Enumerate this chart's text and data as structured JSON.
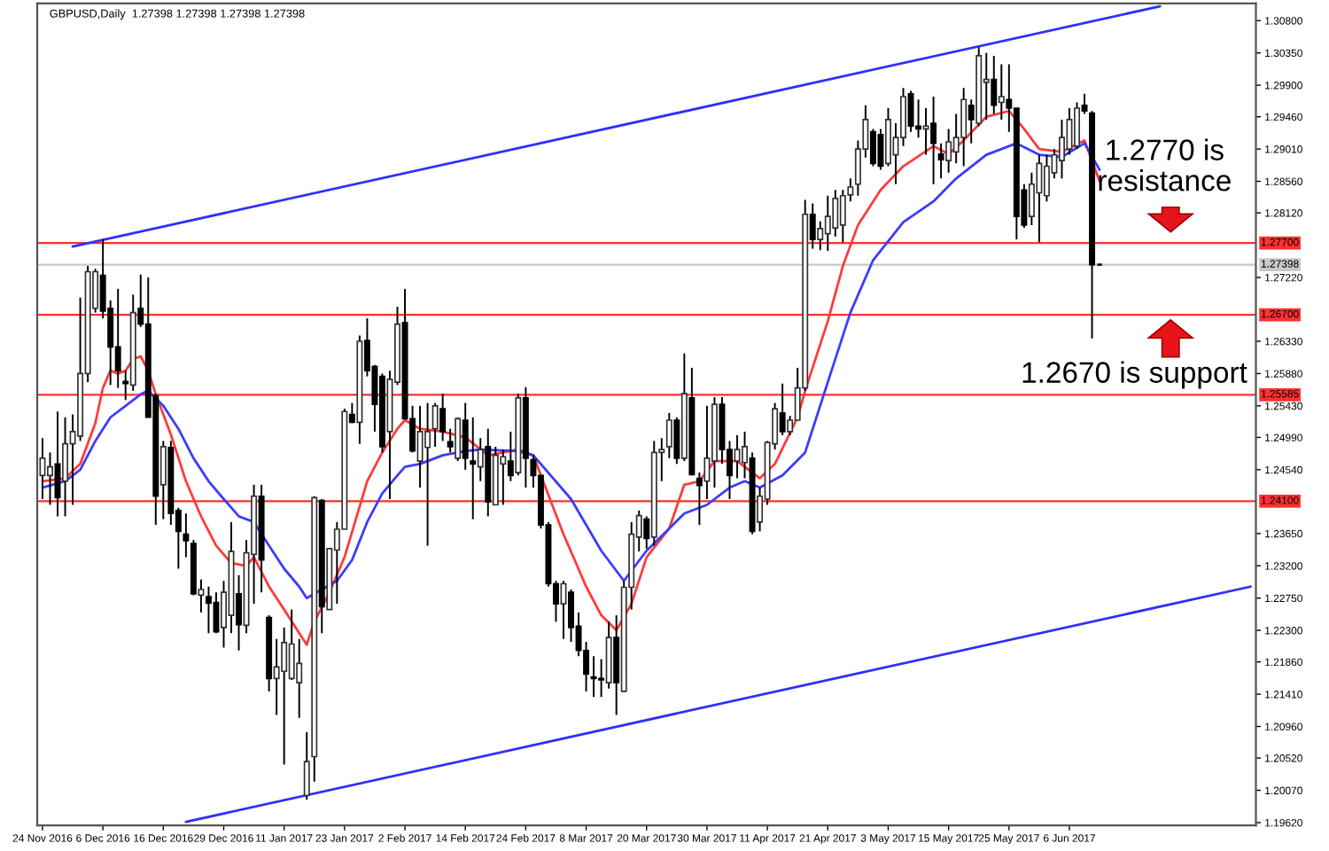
{
  "chart_data": {
    "type": "candlestick",
    "title": "GBPUSD,Daily  1.27398 1.27398 1.27398 1.27398",
    "categories": [
      "24 Nov 2016",
      null,
      null,
      null,
      null,
      null,
      null,
      null,
      "6 Dec 2016",
      null,
      null,
      null,
      null,
      null,
      null,
      null,
      "16 Dec 2016",
      null,
      null,
      null,
      null,
      null,
      null,
      null,
      "29 Dec 2016",
      null,
      null,
      null,
      null,
      null,
      null,
      null,
      "11 Jan 2017",
      null,
      null,
      null,
      null,
      null,
      null,
      null,
      "23 Jan 2017",
      null,
      null,
      null,
      null,
      null,
      null,
      null,
      "2 Feb 2017",
      null,
      null,
      null,
      null,
      null,
      null,
      null,
      "14 Feb 2017",
      null,
      null,
      null,
      null,
      null,
      null,
      null,
      "24 Feb 2017",
      null,
      null,
      null,
      null,
      null,
      null,
      null,
      "8 Mar 2017",
      null,
      null,
      null,
      null,
      null,
      null,
      null,
      "20 Mar 2017",
      null,
      null,
      null,
      null,
      null,
      null,
      null,
      "30 Mar 2017",
      null,
      null,
      null,
      null,
      null,
      null,
      null,
      "11 Apr 2017",
      null,
      null,
      null,
      null,
      null,
      null,
      null,
      "21 Apr 2017",
      null,
      null,
      null,
      null,
      null,
      null,
      null,
      "3 May 2017",
      null,
      null,
      null,
      null,
      null,
      null,
      null,
      "15 May 2017",
      null,
      null,
      null,
      null,
      null,
      null,
      null,
      "25 May 2017",
      null,
      null,
      null,
      null,
      null,
      null,
      null,
      "6 Jun 2017",
      null,
      null,
      null,
      null,
      null,
      null,
      null,
      null,
      null,
      null,
      null,
      null,
      null,
      null,
      null,
      null,
      null,
      null,
      null,
      null,
      null,
      null,
      null,
      null
    ],
    "ohlc": [
      [
        1.2446,
        1.2498,
        1.2413,
        1.247
      ],
      [
        1.2446,
        1.2478,
        1.2405,
        1.2458
      ],
      [
        1.2462,
        1.2535,
        1.2389,
        1.2415
      ],
      [
        1.2438,
        1.2527,
        1.2389,
        1.249
      ],
      [
        1.249,
        1.2531,
        1.2405,
        1.2507
      ],
      [
        1.2501,
        1.2694,
        1.2494,
        1.2588
      ],
      [
        1.2588,
        1.2738,
        1.2576,
        1.273
      ],
      [
        1.2679,
        1.2734,
        1.2673,
        1.273
      ],
      [
        1.2725,
        1.2775,
        1.2665,
        1.2675
      ],
      [
        1.2679,
        1.269,
        1.2572,
        1.2625
      ],
      [
        1.2625,
        1.2706,
        1.2568,
        1.2592
      ],
      [
        1.2577,
        1.2592,
        1.2551,
        1.2574
      ],
      [
        1.2572,
        1.2698,
        1.2564,
        1.2673
      ],
      [
        1.2679,
        1.2726,
        1.2653,
        1.2657
      ],
      [
        1.2657,
        1.2722,
        1.2527,
        1.2527
      ],
      [
        1.2557,
        1.256,
        1.2377,
        1.2417
      ],
      [
        1.2433,
        1.2494,
        1.2385,
        1.2486
      ],
      [
        1.2485,
        1.2494,
        1.2377,
        1.2393
      ],
      [
        1.2397,
        1.2401,
        1.2316,
        1.2368
      ],
      [
        1.2364,
        1.2393,
        1.2332,
        1.2355
      ],
      [
        1.2351,
        1.2356,
        1.2279,
        1.2281
      ],
      [
        1.2279,
        1.2301,
        1.2255,
        1.2287
      ],
      [
        1.2277,
        1.2291,
        1.2226,
        1.2268
      ],
      [
        1.2269,
        1.2283,
        1.2226,
        1.2228
      ],
      [
        1.2234,
        1.2299,
        1.2206,
        1.2283
      ],
      [
        1.2251,
        1.2381,
        1.2226,
        1.234
      ],
      [
        1.2281,
        1.2307,
        1.2202,
        1.2238
      ],
      [
        1.2237,
        1.2356,
        1.2226,
        1.2338
      ],
      [
        1.2336,
        1.2433,
        1.2267,
        1.2417
      ],
      [
        1.2417,
        1.2433,
        1.2283,
        1.2328
      ],
      [
        1.2248,
        1.2251,
        1.2145,
        1.2163
      ],
      [
        1.2163,
        1.2218,
        1.2112,
        1.2179
      ],
      [
        1.2173,
        1.2234,
        1.2043,
        1.2213
      ],
      [
        1.2163,
        1.2259,
        1.2161,
        1.2211
      ],
      [
        1.2157,
        1.2218,
        1.2108,
        1.2184
      ],
      [
        1.2,
        1.2088,
        1.1994,
        1.2047
      ],
      [
        1.2054,
        1.2417,
        1.2019,
        1.2415
      ],
      [
        1.2411,
        1.2413,
        1.2226,
        1.2263
      ],
      [
        1.2259,
        1.2344,
        1.2259,
        1.2344
      ],
      [
        1.2342,
        1.2381,
        1.2267,
        1.2371
      ],
      [
        1.2371,
        1.2539,
        1.2371,
        1.2535
      ],
      [
        1.2531,
        1.2547,
        1.2519,
        1.252
      ],
      [
        1.252,
        1.2641,
        1.249,
        1.2633
      ],
      [
        1.2634,
        1.2665,
        1.2584,
        1.2592
      ],
      [
        1.2598,
        1.26,
        1.2507,
        1.2545
      ],
      [
        1.2584,
        1.2588,
        1.2478,
        1.2486
      ],
      [
        1.2507,
        1.2592,
        1.2413,
        1.258
      ],
      [
        1.2576,
        1.2681,
        1.2572,
        1.2657
      ],
      [
        1.2659,
        1.2706,
        1.2525,
        1.2525
      ],
      [
        1.2525,
        1.2543,
        1.2478,
        1.248
      ],
      [
        1.2466,
        1.2543,
        1.2429,
        1.2507
      ],
      [
        1.2485,
        1.2547,
        1.2348,
        1.2507
      ],
      [
        1.2511,
        1.2547,
        1.2486,
        1.2543
      ],
      [
        1.2539,
        1.256,
        1.2494,
        1.2507
      ],
      [
        1.2493,
        1.2511,
        1.2478,
        1.2486
      ],
      [
        1.247,
        1.2527,
        1.2466,
        1.2525
      ],
      [
        1.2523,
        1.2547,
        1.2454,
        1.247
      ],
      [
        1.2466,
        1.2527,
        1.2385,
        1.2462
      ],
      [
        1.2458,
        1.2498,
        1.2438,
        1.2482
      ],
      [
        1.2486,
        1.2511,
        1.2389,
        1.2409
      ],
      [
        1.2405,
        1.2486,
        1.2405,
        1.2474
      ],
      [
        1.2462,
        1.2482,
        1.2405,
        1.2472
      ],
      [
        1.2466,
        1.2507,
        1.2438,
        1.2446
      ],
      [
        1.245,
        1.256,
        1.2446,
        1.2554
      ],
      [
        1.2554,
        1.2569,
        1.2429,
        1.247
      ],
      [
        1.2468,
        1.2474,
        1.2429,
        1.2446
      ],
      [
        1.2446,
        1.2446,
        1.2372,
        1.2377
      ],
      [
        1.2377,
        1.2381,
        1.2291,
        1.2295
      ],
      [
        1.2295,
        1.2299,
        1.2242,
        1.2267
      ],
      [
        1.2267,
        1.2299,
        1.2218,
        1.2295
      ],
      [
        1.2283,
        1.2287,
        1.2214,
        1.2234
      ],
      [
        1.2236,
        1.2255,
        1.2194,
        1.2202
      ],
      [
        1.2202,
        1.2214,
        1.2145,
        1.2169
      ],
      [
        1.2165,
        1.2194,
        1.2137,
        1.2163
      ],
      [
        1.2163,
        1.219,
        1.2137,
        1.2161
      ],
      [
        1.2157,
        1.2242,
        1.2149,
        1.222
      ],
      [
        1.222,
        1.2251,
        1.2112,
        1.2157
      ],
      [
        1.2145,
        1.2299,
        1.2145,
        1.229
      ],
      [
        1.229,
        1.2381,
        1.2259,
        1.2364
      ],
      [
        1.236,
        1.2397,
        1.234,
        1.239
      ],
      [
        1.2385,
        1.2389,
        1.2344,
        1.2358
      ],
      [
        1.236,
        1.2494,
        1.2348,
        1.2478
      ],
      [
        1.2478,
        1.2498,
        1.2438,
        1.2482
      ],
      [
        1.2486,
        1.2533,
        1.247,
        1.2523
      ],
      [
        1.2523,
        1.2527,
        1.2462,
        1.247
      ],
      [
        1.247,
        1.2616,
        1.2466,
        1.256
      ],
      [
        1.2554,
        1.2596,
        1.2446,
        1.2447
      ],
      [
        1.2442,
        1.245,
        1.2377,
        1.2432
      ],
      [
        1.2438,
        1.2543,
        1.2413,
        1.247
      ],
      [
        1.2466,
        1.2555,
        1.2429,
        1.2545
      ],
      [
        1.2545,
        1.2555,
        1.2462,
        1.2482
      ],
      [
        1.2482,
        1.2494,
        1.2413,
        1.2446
      ],
      [
        1.2466,
        1.2502,
        1.2442,
        1.2482
      ],
      [
        1.2464,
        1.2507,
        1.2442,
        1.2486
      ],
      [
        1.247,
        1.2478,
        1.2364,
        1.2368
      ],
      [
        1.2381,
        1.2429,
        1.2368,
        1.2417
      ],
      [
        1.2413,
        1.2494,
        1.2405,
        1.2492
      ],
      [
        1.249,
        1.2547,
        1.2482,
        1.2539
      ],
      [
        1.2533,
        1.2574,
        1.2502,
        1.2507
      ],
      [
        1.2507,
        1.2529,
        1.2502,
        1.2523
      ],
      [
        1.2523,
        1.2596,
        1.2523,
        1.2568
      ],
      [
        1.2568,
        1.283,
        1.2564,
        1.281
      ],
      [
        1.281,
        1.2825,
        1.2762,
        1.2775
      ],
      [
        1.2775,
        1.28,
        1.276,
        1.279
      ],
      [
        1.2783,
        1.2836,
        1.2759,
        1.2807
      ],
      [
        1.2791,
        1.2844,
        1.2779,
        1.2832
      ],
      [
        1.2795,
        1.2844,
        1.2771,
        1.2836
      ],
      [
        1.2837,
        1.286,
        1.2828,
        1.2848
      ],
      [
        1.2852,
        1.2913,
        1.2836,
        1.2901
      ],
      [
        1.2901,
        1.2962,
        1.2889,
        1.2942
      ],
      [
        1.2925,
        1.2929,
        1.2877,
        1.2881
      ],
      [
        1.2921,
        1.2929,
        1.2872,
        1.2877
      ],
      [
        1.2881,
        1.2958,
        1.2877,
        1.2942
      ],
      [
        1.2893,
        1.2937,
        1.2852,
        1.2917
      ],
      [
        1.2917,
        1.2986,
        1.2905,
        1.2974
      ],
      [
        1.2978,
        1.2982,
        1.2925,
        1.2933
      ],
      [
        1.2933,
        1.297,
        1.2917,
        1.2929
      ],
      [
        1.2929,
        1.2958,
        1.2893,
        1.2933
      ],
      [
        1.2937,
        1.2974,
        1.2852,
        1.2909
      ],
      [
        1.2894,
        1.2909,
        1.286,
        1.2886
      ],
      [
        1.2885,
        1.2929,
        1.2868,
        1.2911
      ],
      [
        1.2897,
        1.295,
        1.2881,
        1.2917
      ],
      [
        1.2917,
        1.2986,
        1.2877,
        1.297
      ],
      [
        1.2962,
        1.297,
        1.2909,
        1.2942
      ],
      [
        1.2937,
        1.3043,
        1.2933,
        1.3031
      ],
      [
        1.2994,
        1.3035,
        1.2942,
        1.2998
      ],
      [
        1.2998,
        1.3031,
        1.295,
        1.2962
      ],
      [
        1.2966,
        1.3019,
        1.2942,
        1.2974
      ],
      [
        1.297,
        1.3019,
        1.2925,
        1.2958
      ],
      [
        1.2958,
        1.2958,
        1.2775,
        1.2807
      ],
      [
        1.2844,
        1.2852,
        1.2791,
        1.2795
      ],
      [
        1.2807,
        1.2868,
        1.2795,
        1.2852
      ],
      [
        1.284,
        1.2893,
        1.2771,
        1.2881
      ],
      [
        1.2836,
        1.2893,
        1.2828,
        1.2877
      ],
      [
        1.2868,
        1.2901,
        1.286,
        1.2893
      ],
      [
        1.2885,
        1.2942,
        1.286,
        1.2917
      ],
      [
        1.2901,
        1.2958,
        1.2893,
        1.2942
      ],
      [
        1.2905,
        1.2966,
        1.2901,
        1.2958
      ],
      [
        1.2962,
        1.2978,
        1.295,
        1.2954
      ],
      [
        1.2951,
        1.2954,
        1.2637,
        1.27398
      ],
      [
        1.27398,
        1.27398,
        1.27398,
        1.27398
      ],
      null,
      null,
      null,
      null,
      null,
      null,
      null,
      null,
      null,
      null,
      null,
      null,
      null,
      null,
      null,
      null,
      null,
      null,
      null,
      null
    ],
    "series": [
      {
        "type": "line",
        "color": "#ff3b3b",
        "values": [
          1.2438,
          null,
          null,
          1.2442,
          null,
          1.2462,
          null,
          1.2519,
          1.2568,
          1.2592,
          1.2588,
          1.2592,
          1.2608,
          1.2612,
          1.2592,
          1.2559,
          null,
          1.2503,
          null,
          1.2438,
          null,
          1.2389,
          null,
          1.2348,
          null,
          1.2324,
          null,
          1.232,
          1.2332,
          null,
          1.2291,
          null,
          1.2259,
          null,
          1.2226,
          1.221,
          1.2242,
          null,
          1.2283,
          null,
          1.2332,
          null,
          null,
          1.2438,
          null,
          1.2478,
          null,
          1.2511,
          1.2523,
          null,
          1.2511,
          null,
          null,
          1.2507,
          null,
          null,
          1.2499,
          null,
          null,
          1.2474,
          null,
          null,
          null,
          1.2482,
          null,
          1.2474,
          null,
          null,
          null,
          1.2364,
          null,
          null,
          1.2291,
          null,
          1.2251,
          null,
          1.223,
          null,
          1.2267,
          null,
          1.2332,
          null,
          null,
          1.2372,
          null,
          1.2433,
          null,
          1.2438,
          null,
          1.2466,
          null,
          null,
          1.2466,
          null,
          null,
          1.2442,
          null,
          1.2462,
          null,
          null,
          1.2527,
          1.2564,
          null,
          null,
          1.2661,
          null,
          1.2738,
          null,
          1.2795,
          null,
          null,
          1.2844,
          null,
          null,
          1.2877,
          null,
          null,
          null,
          1.2905,
          null,
          1.2894,
          null,
          1.2913,
          null,
          null,
          1.2946,
          null,
          null,
          1.2954,
          null,
          1.2929,
          null,
          1.2901,
          null,
          null,
          1.2897,
          null,
          null,
          1.2913,
          null,
          1.2856,
          null,
          null,
          null,
          null,
          null,
          null,
          null,
          null,
          null,
          null,
          null,
          null,
          null,
          null,
          null,
          null,
          null,
          null,
          null,
          null
        ]
      },
      {
        "type": "line",
        "color": "#3b3bff",
        "values": [
          1.2429,
          null,
          null,
          1.2438,
          null,
          1.2454,
          null,
          1.2494,
          null,
          1.2527,
          null,
          1.2543,
          null,
          1.2559,
          1.2564,
          null,
          1.2543,
          null,
          1.2511,
          null,
          1.247,
          null,
          1.2438,
          null,
          1.2413,
          null,
          1.2389,
          null,
          1.2381,
          null,
          1.2348,
          null,
          1.2316,
          null,
          1.2291,
          1.2275,
          null,
          1.2287,
          null,
          1.2299,
          null,
          1.2328,
          null,
          1.2381,
          null,
          1.2421,
          null,
          1.2446,
          1.2458,
          null,
          1.2462,
          null,
          null,
          1.2474,
          null,
          null,
          1.248,
          null,
          1.2482,
          null,
          null,
          null,
          null,
          1.248,
          null,
          1.2474,
          null,
          null,
          null,
          null,
          1.2413,
          null,
          null,
          null,
          1.2341,
          null,
          null,
          1.2299,
          null,
          null,
          1.2341,
          null,
          null,
          1.2372,
          null,
          1.2393,
          null,
          null,
          1.2405,
          null,
          null,
          1.2429,
          null,
          1.2438,
          null,
          1.2429,
          null,
          null,
          1.2446,
          null,
          null,
          1.2478,
          null,
          null,
          1.2576,
          null,
          null,
          1.2673,
          null,
          null,
          1.2746,
          null,
          null,
          null,
          1.2799,
          null,
          null,
          null,
          1.2828,
          null,
          null,
          1.286,
          null,
          null,
          null,
          1.2893,
          null,
          null,
          null,
          1.2909,
          null,
          null,
          1.2893,
          null,
          null,
          1.289,
          null,
          null,
          1.2909,
          null,
          1.2872,
          null,
          null,
          null,
          null,
          null,
          null,
          null,
          null,
          null,
          null,
          null,
          null,
          null,
          null,
          null,
          null,
          null,
          null,
          null,
          null
        ]
      },
      {
        "type": "line",
        "color": "#2e2eff",
        "values": [
          null,
          null,
          null,
          null,
          1.2765,
          null,
          null,
          null,
          null,
          null,
          null,
          null,
          null,
          null,
          null,
          null,
          null,
          null,
          null,
          null,
          null,
          null,
          null,
          null,
          null,
          null,
          null,
          null,
          null,
          null,
          null,
          null,
          null,
          null,
          null,
          null,
          null,
          null,
          null,
          null,
          null,
          null,
          null,
          null,
          null,
          null,
          null,
          null,
          null,
          null,
          null,
          null,
          null,
          null,
          null,
          null,
          null,
          null,
          null,
          null,
          null,
          null,
          null,
          null,
          null,
          null,
          null,
          null,
          null,
          null,
          null,
          null,
          null,
          null,
          null,
          null,
          null,
          null,
          null,
          null,
          null,
          null,
          null,
          null,
          null,
          null,
          null,
          null,
          null,
          null,
          null,
          null,
          null,
          null,
          null,
          null,
          null,
          null,
          null,
          null,
          null,
          null,
          null,
          null,
          null,
          null,
          null,
          null,
          null,
          null,
          null,
          null,
          null,
          null,
          null,
          null,
          null,
          null,
          null,
          null,
          null,
          null,
          null,
          null,
          null,
          null,
          null,
          null,
          null,
          null,
          null,
          null,
          null,
          null,
          null,
          null,
          null,
          null,
          null,
          null,
          null,
          null,
          null,
          null,
          null,
          null,
          null,
          null,
          1.31,
          null,
          null,
          null,
          null,
          null,
          null,
          null,
          null,
          null,
          null,
          null,
          null
        ]
      },
      {
        "type": "line",
        "color": "#2e2eff",
        "values": [
          null,
          null,
          null,
          null,
          null,
          null,
          null,
          null,
          null,
          null,
          null,
          null,
          null,
          null,
          null,
          null,
          null,
          null,
          null,
          1.1963,
          null,
          null,
          null,
          null,
          null,
          null,
          null,
          null,
          null,
          null,
          null,
          null,
          null,
          null,
          null,
          null,
          null,
          null,
          null,
          null,
          null,
          null,
          null,
          null,
          null,
          null,
          null,
          null,
          null,
          null,
          null,
          null,
          null,
          null,
          null,
          null,
          null,
          null,
          null,
          null,
          null,
          null,
          null,
          null,
          null,
          null,
          null,
          null,
          null,
          null,
          null,
          null,
          null,
          null,
          null,
          null,
          null,
          null,
          null,
          null,
          null,
          null,
          null,
          null,
          null,
          null,
          null,
          null,
          null,
          null,
          null,
          null,
          null,
          null,
          null,
          null,
          null,
          null,
          null,
          null,
          null,
          null,
          null,
          null,
          null,
          null,
          null,
          null,
          null,
          null,
          null,
          null,
          null,
          null,
          null,
          null,
          null,
          null,
          null,
          null,
          null,
          null,
          null,
          null,
          null,
          null,
          null,
          null,
          null,
          null,
          null,
          null,
          null,
          null,
          null,
          null,
          null,
          null,
          null,
          null,
          null,
          null,
          null,
          null,
          null,
          null,
          null,
          null,
          null,
          null,
          null,
          null,
          null,
          null,
          null,
          null,
          null,
          null,
          null,
          null,
          1.2291
        ]
      }
    ],
    "ylim": [
      1.1958,
      1.3104
    ],
    "yticks": [
      {
        "value": 1.308,
        "label": "1.30800"
      },
      {
        "value": 1.3035,
        "label": "1.30350"
      },
      {
        "value": 1.299,
        "label": "1.29900"
      },
      {
        "value": 1.2946,
        "label": "1.29460"
      },
      {
        "value": 1.2901,
        "label": "1.29010"
      },
      {
        "value": 1.2856,
        "label": "1.28560"
      },
      {
        "value": 1.2812,
        "label": "1.28120"
      },
      {
        "value": 1.2722,
        "label": "1.27220"
      },
      {
        "value": 1.2633,
        "label": "1.26330"
      },
      {
        "value": 1.2588,
        "label": "1.25880"
      },
      {
        "value": 1.2543,
        "label": "1.25430"
      },
      {
        "value": 1.2499,
        "label": "1.24990"
      },
      {
        "value": 1.2454,
        "label": "1.24540"
      },
      {
        "value": 1.2365,
        "label": "1.23650"
      },
      {
        "value": 1.232,
        "label": "1.23200"
      },
      {
        "value": 1.2275,
        "label": "1.22750"
      },
      {
        "value": 1.223,
        "label": "1.22300"
      },
      {
        "value": 1.2186,
        "label": "1.21860"
      },
      {
        "value": 1.2141,
        "label": "1.21410"
      },
      {
        "value": 1.2096,
        "label": "1.20960"
      },
      {
        "value": 1.2052,
        "label": "1.20520"
      },
      {
        "value": 1.2007,
        "label": "1.20070"
      },
      {
        "value": 1.1962,
        "label": "1.19620"
      }
    ],
    "ref_lines": [
      {
        "axis": "y",
        "value": 1.277,
        "label": "1.27700",
        "color": "#ff3030"
      },
      {
        "axis": "y",
        "value": 1.27398,
        "label": "1.27398",
        "color": "#c8c8c8"
      },
      {
        "axis": "y",
        "value": 1.267,
        "label": "1.26700",
        "color": "#ff3030"
      },
      {
        "axis": "y",
        "value": 1.25585,
        "label": "1.25585",
        "color": "#ff3030"
      },
      {
        "axis": "y",
        "value": 1.241,
        "label": "1.24100",
        "color": "#ff3030"
      }
    ],
    "annotations": [
      "1.2770 is\nresistance",
      "1.2670 is support"
    ]
  }
}
